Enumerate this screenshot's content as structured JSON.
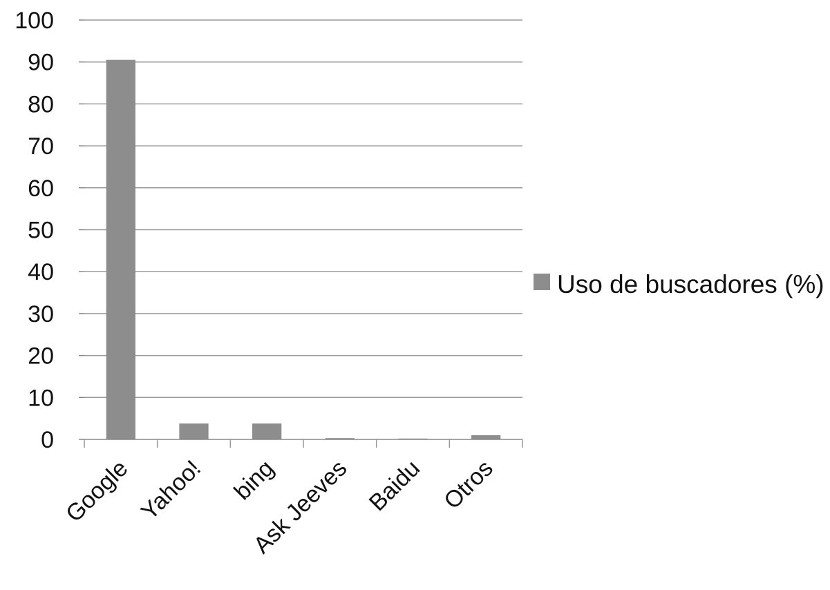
{
  "chart_data": {
    "type": "bar",
    "categories": [
      "Google",
      "Yahoo!",
      "bing",
      "Ask Jeeves",
      "Baidu",
      "Otros"
    ],
    "series": [
      {
        "name": "Uso de buscadores (%)",
        "values": [
          90.5,
          3.8,
          3.8,
          0.3,
          0.2,
          1.0
        ]
      }
    ],
    "ylim": [
      0,
      100
    ],
    "yticks": [
      0,
      10,
      20,
      30,
      40,
      50,
      60,
      70,
      80,
      90,
      100
    ],
    "grid": true,
    "legend_position": "right",
    "bar_color": "#8d8d8d",
    "title": "",
    "xlabel": "",
    "ylabel": ""
  }
}
